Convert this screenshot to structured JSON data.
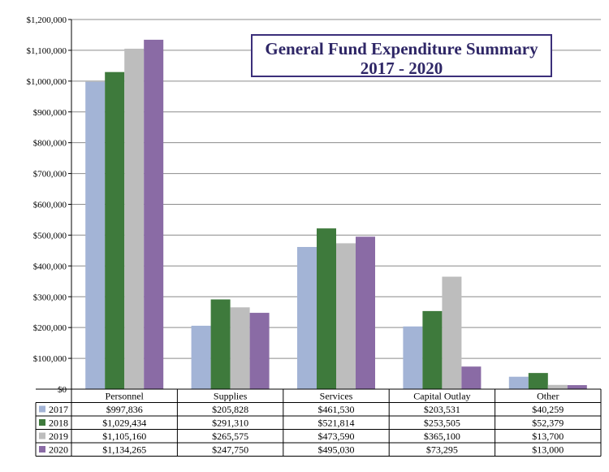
{
  "chart_data": {
    "type": "bar",
    "title": "General Fund Expenditure Summary",
    "subtitle": "2017 - 2020",
    "categories": [
      "Personnel",
      "Supplies",
      "Services",
      "Capital Outlay",
      "Other"
    ],
    "series": [
      {
        "name": "2017",
        "color": "#a3b4d6",
        "values": [
          997836,
          205828,
          461530,
          203531,
          40259
        ],
        "labels": [
          "$997,836",
          "$205,828",
          "$461,530",
          "$203,531",
          "$40,259"
        ]
      },
      {
        "name": "2018",
        "color": "#3e7a3c",
        "values": [
          1029434,
          291310,
          521814,
          253505,
          52379
        ],
        "labels": [
          "$1,029,434",
          "$291,310",
          "$521,814",
          "$253,505",
          "$52,379"
        ]
      },
      {
        "name": "2019",
        "color": "#bdbdbd",
        "values": [
          1105160,
          265575,
          473590,
          365100,
          13700
        ],
        "labels": [
          "$1,105,160",
          "$265,575",
          "$473,590",
          "$365,100",
          "$13,700"
        ]
      },
      {
        "name": "2020",
        "color": "#8a6ba5",
        "values": [
          1134265,
          247750,
          495030,
          73295,
          13000
        ],
        "labels": [
          "$1,134,265",
          "$247,750",
          "$495,030",
          "$73,295",
          "$13,000"
        ]
      }
    ],
    "ylim": [
      0,
      1200000
    ],
    "yticks": [
      0,
      100000,
      200000,
      300000,
      400000,
      500000,
      600000,
      700000,
      800000,
      900000,
      1000000,
      1100000,
      1200000
    ],
    "ytick_labels": [
      "$0",
      "$100,000",
      "$200,000",
      "$300,000",
      "$400,000",
      "$500,000",
      "$600,000",
      "$700,000",
      "$800,000",
      "$900,000",
      "$1,000,000",
      "$1,100,000",
      "$1,200,000"
    ],
    "grid": true,
    "legend": "data-table"
  }
}
